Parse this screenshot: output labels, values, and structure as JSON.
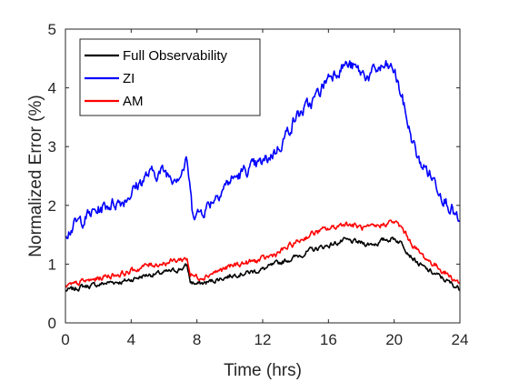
{
  "chart_data": {
    "type": "line",
    "xlabel": "Time (hrs)",
    "ylabel": "Normalized Error (%)",
    "xlim": [
      0,
      24
    ],
    "ylim": [
      0,
      5
    ],
    "xticks": [
      "0",
      "4",
      "8",
      "12",
      "16",
      "20",
      "24"
    ],
    "yticks": [
      "0",
      "1",
      "2",
      "3",
      "4",
      "5"
    ],
    "grid": false,
    "legend_position": "top-left",
    "series": [
      {
        "name": "Full Observability",
        "color": "#000000",
        "points": [
          [
            0,
            0.55
          ],
          [
            0.5,
            0.57
          ],
          [
            1,
            0.62
          ],
          [
            1.5,
            0.63
          ],
          [
            2,
            0.65
          ],
          [
            2.5,
            0.68
          ],
          [
            3,
            0.7
          ],
          [
            3.5,
            0.7
          ],
          [
            4,
            0.74
          ],
          [
            4.5,
            0.78
          ],
          [
            5,
            0.82
          ],
          [
            5.5,
            0.83
          ],
          [
            6,
            0.85
          ],
          [
            6.5,
            0.88
          ],
          [
            7,
            0.92
          ],
          [
            7.4,
            0.97
          ],
          [
            7.6,
            0.7
          ],
          [
            8,
            0.66
          ],
          [
            8.5,
            0.68
          ],
          [
            9,
            0.72
          ],
          [
            9.5,
            0.76
          ],
          [
            10,
            0.8
          ],
          [
            10.5,
            0.84
          ],
          [
            11,
            0.85
          ],
          [
            11.5,
            0.88
          ],
          [
            12,
            0.91
          ],
          [
            12.5,
            0.96
          ],
          [
            13,
            1.02
          ],
          [
            13.5,
            1.07
          ],
          [
            14,
            1.12
          ],
          [
            14.5,
            1.18
          ],
          [
            15,
            1.24
          ],
          [
            15.5,
            1.28
          ],
          [
            16,
            1.32
          ],
          [
            16.5,
            1.36
          ],
          [
            17,
            1.4
          ],
          [
            17.5,
            1.38
          ],
          [
            18,
            1.36
          ],
          [
            18.5,
            1.34
          ],
          [
            19,
            1.36
          ],
          [
            19.5,
            1.42
          ],
          [
            20,
            1.44
          ],
          [
            20.5,
            1.35
          ],
          [
            21,
            1.15
          ],
          [
            21.5,
            1.0
          ],
          [
            22,
            0.9
          ],
          [
            22.5,
            0.83
          ],
          [
            23,
            0.75
          ],
          [
            23.5,
            0.66
          ],
          [
            24,
            0.58
          ]
        ]
      },
      {
        "name": "ZI",
        "color": "#0000ff",
        "points": [
          [
            0,
            1.55
          ],
          [
            0.5,
            1.65
          ],
          [
            1,
            1.75
          ],
          [
            1.5,
            1.85
          ],
          [
            2,
            1.92
          ],
          [
            2.5,
            2.0
          ],
          [
            3,
            2.05
          ],
          [
            3.5,
            2.08
          ],
          [
            4,
            2.22
          ],
          [
            4.5,
            2.38
          ],
          [
            5,
            2.52
          ],
          [
            5.5,
            2.55
          ],
          [
            6,
            2.58
          ],
          [
            6.5,
            2.5
          ],
          [
            7,
            2.55
          ],
          [
            7.4,
            2.75
          ],
          [
            7.7,
            1.95
          ],
          [
            8,
            1.85
          ],
          [
            8.5,
            1.95
          ],
          [
            9,
            2.12
          ],
          [
            9.5,
            2.28
          ],
          [
            10,
            2.42
          ],
          [
            10.5,
            2.5
          ],
          [
            11,
            2.6
          ],
          [
            11.5,
            2.65
          ],
          [
            12,
            2.72
          ],
          [
            12.5,
            2.85
          ],
          [
            13,
            3.0
          ],
          [
            13.5,
            3.25
          ],
          [
            14,
            3.5
          ],
          [
            14.5,
            3.62
          ],
          [
            15,
            3.75
          ],
          [
            15.5,
            3.95
          ],
          [
            16,
            4.2
          ],
          [
            16.5,
            4.3
          ],
          [
            17,
            4.4
          ],
          [
            17.5,
            4.35
          ],
          [
            18,
            4.25
          ],
          [
            18.5,
            4.2
          ],
          [
            19,
            4.32
          ],
          [
            19.5,
            4.35
          ],
          [
            20,
            4.3
          ],
          [
            20.5,
            3.8
          ],
          [
            21,
            3.2
          ],
          [
            21.5,
            2.75
          ],
          [
            22,
            2.6
          ],
          [
            22.5,
            2.4
          ],
          [
            23,
            2.15
          ],
          [
            23.5,
            1.95
          ],
          [
            24,
            1.65
          ]
        ]
      },
      {
        "name": "AM",
        "color": "#ff0000",
        "points": [
          [
            0,
            0.62
          ],
          [
            0.5,
            0.64
          ],
          [
            1,
            0.7
          ],
          [
            1.5,
            0.72
          ],
          [
            2,
            0.75
          ],
          [
            2.5,
            0.8
          ],
          [
            3,
            0.82
          ],
          [
            3.5,
            0.84
          ],
          [
            4,
            0.88
          ],
          [
            4.5,
            0.93
          ],
          [
            5,
            0.98
          ],
          [
            5.5,
            1.0
          ],
          [
            6,
            1.02
          ],
          [
            6.5,
            1.05
          ],
          [
            7,
            1.08
          ],
          [
            7.4,
            1.1
          ],
          [
            7.6,
            0.82
          ],
          [
            8,
            0.78
          ],
          [
            8.5,
            0.8
          ],
          [
            9,
            0.86
          ],
          [
            9.5,
            0.9
          ],
          [
            10,
            0.95
          ],
          [
            10.5,
            1.0
          ],
          [
            11,
            1.02
          ],
          [
            11.5,
            1.05
          ],
          [
            12,
            1.08
          ],
          [
            12.5,
            1.14
          ],
          [
            13,
            1.2
          ],
          [
            13.5,
            1.28
          ],
          [
            14,
            1.36
          ],
          [
            14.5,
            1.44
          ],
          [
            15,
            1.52
          ],
          [
            15.5,
            1.56
          ],
          [
            16,
            1.6
          ],
          [
            16.5,
            1.64
          ],
          [
            17,
            1.7
          ],
          [
            17.5,
            1.66
          ],
          [
            18,
            1.62
          ],
          [
            18.5,
            1.6
          ],
          [
            19,
            1.64
          ],
          [
            19.5,
            1.7
          ],
          [
            20,
            1.72
          ],
          [
            20.5,
            1.6
          ],
          [
            21,
            1.38
          ],
          [
            21.5,
            1.2
          ],
          [
            22,
            1.08
          ],
          [
            22.5,
            0.98
          ],
          [
            23,
            0.88
          ],
          [
            23.5,
            0.77
          ],
          [
            24,
            0.68
          ]
        ]
      }
    ]
  }
}
